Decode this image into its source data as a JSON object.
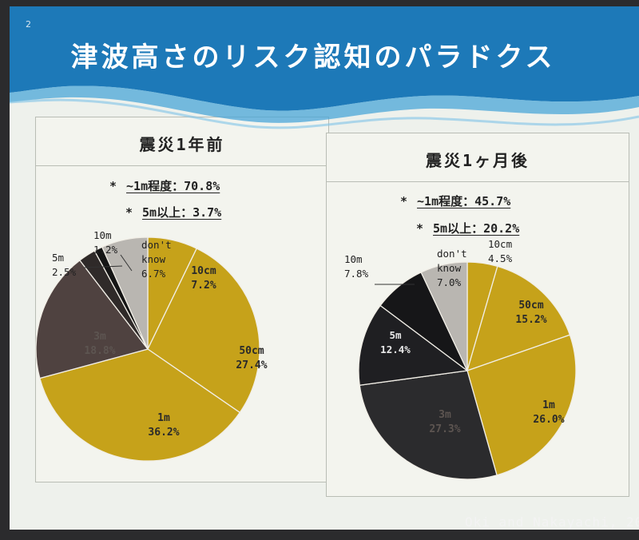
{
  "slide": {
    "number": "2",
    "title": "津波高さのリスク認知のパラドクス",
    "citation": "Oki and Nakayachi, 20",
    "colors": {
      "banner": "#1d79b8",
      "wave": "#4aa5d8",
      "gold": "#c6a21a",
      "brown": "#4f4240"
    }
  },
  "panels": [
    {
      "title": "震災1年前",
      "stats": [
        {
          "bullet": "*",
          "text": "~1m程度：70.8%"
        },
        {
          "bullet": "*",
          "text": "5m以上：3.7%"
        }
      ]
    },
    {
      "title": "震災1ヶ月後",
      "stats": [
        {
          "bullet": "*",
          "text": "~1m程度：45.7%"
        },
        {
          "bullet": "*",
          "text": "5m以上：20.2%"
        }
      ]
    }
  ],
  "chart_data": [
    {
      "type": "pie",
      "title": "震災1年前",
      "slices": [
        {
          "label": "10cm",
          "value": 7.2,
          "display": "7.2%",
          "color": "#c6a21a"
        },
        {
          "label": "50cm",
          "value": 27.4,
          "display": "27.4%",
          "color": "#c6a21a"
        },
        {
          "label": "1m",
          "value": 36.2,
          "display": "36.2%",
          "color": "#c6a21a"
        },
        {
          "label": "3m",
          "value": 18.8,
          "display": "18.8%",
          "color": "#4f4240"
        },
        {
          "label": "5m",
          "value": 2.5,
          "display": "2.5%",
          "color": "#2f2a29"
        },
        {
          "label": "10m",
          "value": 1.2,
          "display": "1.2%",
          "color": "#151515"
        },
        {
          "label": "don't know",
          "value": 6.7,
          "display": "6.7%",
          "color": "#b9b6b1"
        }
      ]
    },
    {
      "type": "pie",
      "title": "震災1ヶ月後",
      "slices": [
        {
          "label": "10cm",
          "value": 4.5,
          "display": "4.5%",
          "color": "#c6a21a"
        },
        {
          "label": "50cm",
          "value": 15.2,
          "display": "15.2%",
          "color": "#c6a21a"
        },
        {
          "label": "1m",
          "value": 26.0,
          "display": "26.0%",
          "color": "#c6a21a"
        },
        {
          "label": "3m",
          "value": 27.3,
          "display": "27.3%",
          "color": "#2b2b2d"
        },
        {
          "label": "5m",
          "value": 12.4,
          "display": "12.4%",
          "color": "#1f1f22"
        },
        {
          "label": "10m",
          "value": 7.8,
          "display": "7.8%",
          "color": "#161618"
        },
        {
          "label": "don't know",
          "value": 7.0,
          "display": "7.0%",
          "color": "#b9b6b1"
        }
      ]
    }
  ]
}
